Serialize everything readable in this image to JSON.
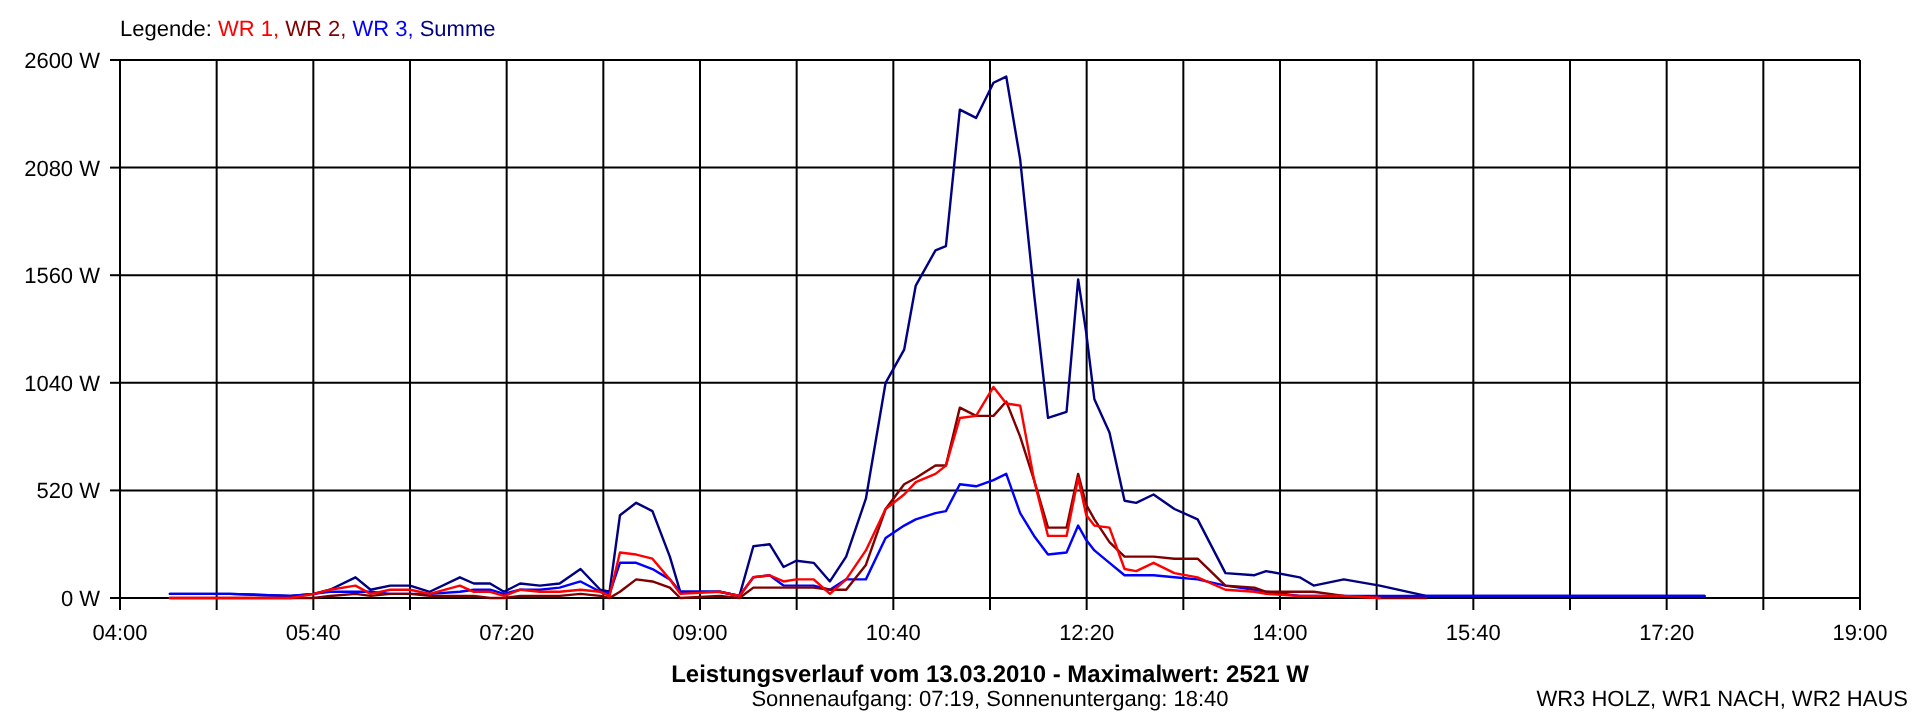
{
  "chart_data": {
    "type": "line",
    "title": "Leistungsverlauf vom 13.03.2010 - Maximalwert: 2521 W",
    "subtitle": "Sonnenaufgang: 07:19, Sonnenuntergang: 18:40",
    "legend_title": "Legende:",
    "legend": "top left",
    "grid": true,
    "line_style": "solid",
    "marker": "none",
    "annotations": [
      "WR3 HOLZ, WR1 NACH, WR2 HAUS"
    ],
    "xlim": [
      4,
      19
    ],
    "xticks": [
      {
        "value": 4,
        "label": "04:00"
      },
      {
        "value": 4.8333,
        "label": null
      },
      {
        "value": 5.6667,
        "label": "05:40"
      },
      {
        "value": 6.5,
        "label": null
      },
      {
        "value": 7.3333,
        "label": "07:20"
      },
      {
        "value": 8.1667,
        "label": null
      },
      {
        "value": 9,
        "label": "09:00"
      },
      {
        "value": 9.8333,
        "label": null
      },
      {
        "value": 10.6667,
        "label": "10:40"
      },
      {
        "value": 11.5,
        "label": null
      },
      {
        "value": 12.3333,
        "label": "12:20"
      },
      {
        "value": 13.1667,
        "label": null
      },
      {
        "value": 14,
        "label": "14:00"
      },
      {
        "value": 14.8333,
        "label": null
      },
      {
        "value": 15.6667,
        "label": "15:40"
      },
      {
        "value": 16.5,
        "label": null
      },
      {
        "value": 17.3333,
        "label": "17:20"
      },
      {
        "value": 18.1667,
        "label": null
      },
      {
        "value": 19,
        "label": "19:00"
      }
    ],
    "ylim": [
      0,
      2600
    ],
    "yticks": [
      {
        "value": 0,
        "label": "0 W"
      },
      {
        "value": 520,
        "label": "520 W"
      },
      {
        "value": 1040,
        "label": "1040 W"
      },
      {
        "value": 1560,
        "label": "1560 W"
      },
      {
        "value": 2080,
        "label": "2080 W"
      },
      {
        "value": 2600,
        "label": "2600 W"
      }
    ],
    "x": [
      4.43,
      4.95,
      5.47,
      5.67,
      5.81,
      6.03,
      6.16,
      6.33,
      6.5,
      6.67,
      6.93,
      7.05,
      7.19,
      7.31,
      7.45,
      7.62,
      7.79,
      7.97,
      8.14,
      8.22,
      8.31,
      8.45,
      8.59,
      8.74,
      8.83,
      9.17,
      9.34,
      9.46,
      9.6,
      9.72,
      9.83,
      9.98,
      10.12,
      10.26,
      10.43,
      10.6,
      10.76,
      10.86,
      11.03,
      11.12,
      11.24,
      11.38,
      11.53,
      11.64,
      11.76,
      11.88,
      12.0,
      12.16,
      12.26,
      12.33,
      12.4,
      12.53,
      12.66,
      12.76,
      12.91,
      13.09,
      13.29,
      13.53,
      13.78,
      13.88,
      14.17,
      14.29,
      14.55,
      14.86,
      15.26,
      16.07,
      17.66
    ],
    "series": [
      {
        "name": "WR 1,",
        "color": "#ff0000",
        "values": [
          0,
          0,
          0,
          20,
          40,
          60,
          20,
          40,
          40,
          20,
          60,
          30,
          30,
          10,
          40,
          30,
          30,
          40,
          30,
          10,
          220,
          210,
          190,
          90,
          20,
          30,
          10,
          100,
          110,
          80,
          90,
          90,
          20,
          90,
          230,
          430,
          500,
          560,
          600,
          640,
          870,
          880,
          1020,
          940,
          930,
          570,
          300,
          300,
          580,
          400,
          350,
          340,
          140,
          130,
          170,
          120,
          100,
          40,
          30,
          20,
          10,
          10,
          10,
          0,
          null,
          null,
          null
        ]
      },
      {
        "name": "WR 2,",
        "color": "#800000",
        "values": [
          0,
          0,
          0,
          0,
          10,
          20,
          10,
          20,
          20,
          10,
          10,
          10,
          0,
          0,
          10,
          10,
          10,
          20,
          10,
          0,
          30,
          90,
          80,
          50,
          0,
          10,
          0,
          50,
          50,
          50,
          50,
          50,
          40,
          40,
          160,
          430,
          550,
          580,
          640,
          640,
          920,
          880,
          880,
          950,
          780,
          570,
          340,
          340,
          600,
          450,
          380,
          270,
          200,
          200,
          200,
          190,
          190,
          60,
          50,
          30,
          30,
          30,
          10,
          0,
          0,
          null,
          null
        ]
      },
      {
        "name": "WR 3,",
        "color": "#0000ff",
        "values": [
          20,
          20,
          10,
          20,
          30,
          30,
          30,
          20,
          20,
          20,
          30,
          40,
          40,
          20,
          40,
          40,
          50,
          80,
          30,
          20,
          170,
          170,
          140,
          90,
          30,
          30,
          10,
          100,
          110,
          60,
          60,
          60,
          40,
          90,
          90,
          290,
          350,
          380,
          410,
          420,
          550,
          540,
          570,
          600,
          410,
          300,
          210,
          220,
          350,
          280,
          230,
          170,
          110,
          110,
          110,
          100,
          90,
          60,
          40,
          30,
          10,
          10,
          10,
          10,
          10,
          10,
          10
        ]
      },
      {
        "name": "Summe",
        "color": "#000080",
        "values": [
          20,
          20,
          10,
          20,
          40,
          100,
          40,
          60,
          60,
          30,
          100,
          70,
          70,
          30,
          70,
          60,
          70,
          140,
          40,
          30,
          400,
          460,
          420,
          200,
          30,
          30,
          10,
          250,
          260,
          150,
          180,
          170,
          80,
          200,
          480,
          1040,
          1200,
          1510,
          1680,
          1700,
          2360,
          2320,
          2490,
          2520,
          2120,
          1470,
          870,
          900,
          1540,
          1280,
          960,
          800,
          470,
          460,
          500,
          430,
          380,
          120,
          110,
          130,
          100,
          60,
          90,
          60,
          10,
          10,
          10
        ]
      }
    ]
  }
}
